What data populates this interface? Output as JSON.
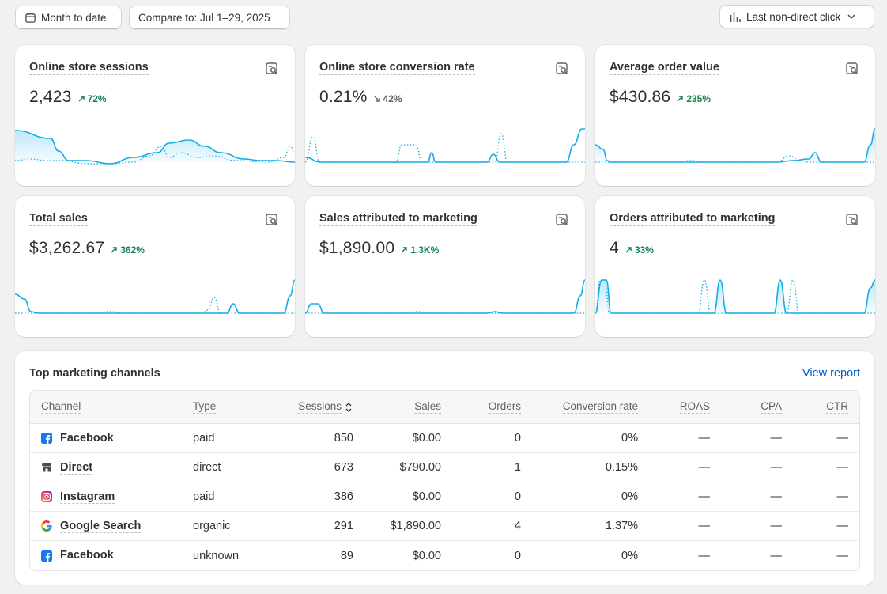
{
  "toolbar": {
    "date_range_label": "Month to date",
    "compare_label": "Compare to: Jul 1–29, 2025",
    "attribution_label": "Last non-direct click"
  },
  "metrics": [
    {
      "title": "Online store sessions",
      "value": "2,423",
      "delta": "72%",
      "direction": "up"
    },
    {
      "title": "Online store conversion rate",
      "value": "0.21%",
      "delta": "42%",
      "direction": "down"
    },
    {
      "title": "Average order value",
      "value": "$430.86",
      "delta": "235%",
      "direction": "up"
    },
    {
      "title": "Total sales",
      "value": "$3,262.67",
      "delta": "362%",
      "direction": "up"
    },
    {
      "title": "Sales attributed to marketing",
      "value": "$1,890.00",
      "delta": "1.3K%",
      "direction": "up"
    },
    {
      "title": "Orders attributed to marketing",
      "value": "4",
      "delta": "33%",
      "direction": "up"
    }
  ],
  "channels": {
    "title": "Top marketing channels",
    "view_report": "View report",
    "columns": [
      "Channel",
      "Type",
      "Sessions",
      "Sales",
      "Orders",
      "Conversion rate",
      "ROAS",
      "CPA",
      "CTR"
    ],
    "rows": [
      {
        "icon": "facebook-icon",
        "channel": "Facebook",
        "type": "paid",
        "sessions": "850",
        "sales": "$0.00",
        "orders": "0",
        "conversion": "0%",
        "roas": "—",
        "cpa": "—",
        "ctr": "—"
      },
      {
        "icon": "store-icon",
        "channel": "Direct",
        "type": "direct",
        "sessions": "673",
        "sales": "$790.00",
        "orders": "1",
        "conversion": "0.15%",
        "roas": "—",
        "cpa": "—",
        "ctr": "—"
      },
      {
        "icon": "instagram-icon",
        "channel": "Instagram",
        "type": "paid",
        "sessions": "386",
        "sales": "$0.00",
        "orders": "0",
        "conversion": "0%",
        "roas": "—",
        "cpa": "—",
        "ctr": "—"
      },
      {
        "icon": "google-icon",
        "channel": "Google Search",
        "type": "organic",
        "sessions": "291",
        "sales": "$1,890.00",
        "orders": "4",
        "conversion": "1.37%",
        "roas": "—",
        "cpa": "—",
        "ctr": "—"
      },
      {
        "icon": "facebook-icon",
        "channel": "Facebook",
        "type": "unknown",
        "sessions": "89",
        "sales": "$0.00",
        "orders": "0",
        "conversion": "0%",
        "roas": "—",
        "cpa": "—",
        "ctr": "—"
      }
    ]
  },
  "colors": {
    "accent": "#13aee5",
    "positive": "#13824f",
    "neutral": "#616161",
    "link": "#005bd3"
  }
}
